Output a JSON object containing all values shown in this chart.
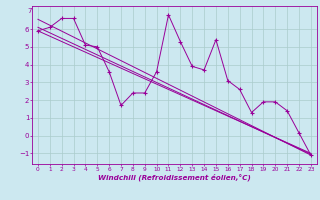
{
  "xlabel": "Windchill (Refroidissement éolien,°C)",
  "background_color": "#cce8f0",
  "line_color": "#990099",
  "grid_color": "#aacccc",
  "xlim": [
    -0.5,
    23.5
  ],
  "ylim": [
    -1.6,
    7.3
  ],
  "yticks": [
    -1,
    0,
    1,
    2,
    3,
    4,
    5,
    6
  ],
  "xticks": [
    0,
    1,
    2,
    3,
    4,
    5,
    6,
    7,
    8,
    9,
    10,
    11,
    12,
    13,
    14,
    15,
    16,
    17,
    18,
    19,
    20,
    21,
    22,
    23
  ],
  "data_line": [
    [
      0,
      5.9
    ],
    [
      1,
      6.1
    ],
    [
      2,
      6.6
    ],
    [
      3,
      6.6
    ],
    [
      4,
      5.1
    ],
    [
      5,
      5.0
    ],
    [
      6,
      3.6
    ],
    [
      7,
      1.7
    ],
    [
      8,
      2.4
    ],
    [
      9,
      2.4
    ],
    [
      10,
      3.6
    ],
    [
      11,
      6.8
    ],
    [
      12,
      5.3
    ],
    [
      13,
      3.9
    ],
    [
      14,
      3.7
    ],
    [
      15,
      5.4
    ],
    [
      16,
      3.1
    ],
    [
      17,
      2.6
    ],
    [
      18,
      1.3
    ],
    [
      19,
      1.9
    ],
    [
      20,
      1.9
    ],
    [
      21,
      1.4
    ],
    [
      22,
      0.15
    ],
    [
      23,
      -1.1
    ]
  ],
  "trend_line1": [
    [
      0,
      6.55
    ],
    [
      23,
      -1.1
    ]
  ],
  "trend_line2": [
    [
      0,
      6.1
    ],
    [
      23,
      -1.05
    ]
  ],
  "trend_line3": [
    [
      0,
      5.9
    ],
    [
      23,
      -1.0
    ]
  ]
}
